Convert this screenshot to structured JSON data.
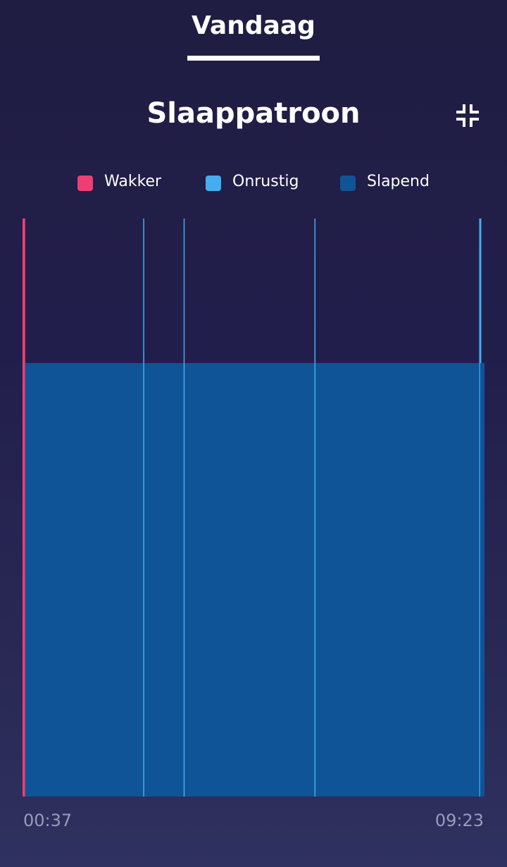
{
  "tabs": [
    {
      "label": "Vandaag",
      "selected": true
    }
  ],
  "title": "Slaappatroon",
  "collapse_icon": "collapse-arrows-icon",
  "legend": [
    {
      "label": "Wakker",
      "color": "#ef3f72"
    },
    {
      "label": "Onrustig",
      "color": "#45aef0"
    },
    {
      "label": "Slapend",
      "color": "#0f5496"
    }
  ],
  "chart_data": {
    "type": "area",
    "x_start": "00:37",
    "x_end": "09:23",
    "levels": [
      "Slapend",
      "Onrustig",
      "Wakker"
    ],
    "segments": [
      {
        "start": "00:37",
        "end": "00:40",
        "state": "Wakker"
      },
      {
        "start": "00:40",
        "end": "09:17",
        "state": "Slapend"
      },
      {
        "start": "09:17",
        "end": "09:18",
        "state": "Onrustig"
      },
      {
        "start": "09:18",
        "end": "09:23",
        "state": "Slapend"
      }
    ],
    "markers": [
      {
        "time": "02:55",
        "state": "Onrustig"
      },
      {
        "time": "03:41",
        "state": "Onrustig"
      },
      {
        "time": "06:10",
        "state": "Onrustig"
      }
    ],
    "xlabel": "",
    "ylabel": ""
  },
  "axis": {
    "start_label": "00:37",
    "end_label": "09:23"
  }
}
